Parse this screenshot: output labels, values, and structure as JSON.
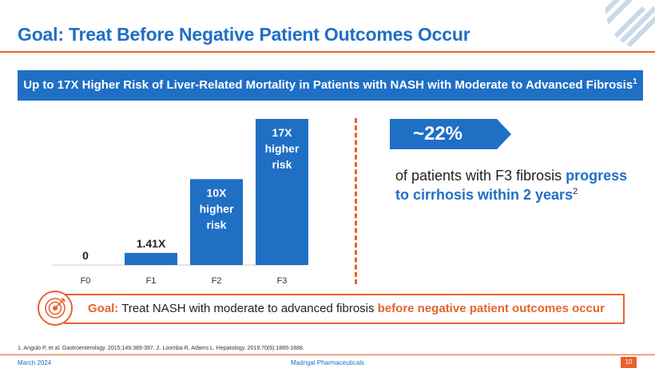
{
  "slide": {
    "title": "Goal: Treat Before Negative Patient Outcomes Occur",
    "banner_text": "Up to 17X Higher Risk of Liver-Related Mortality in Patients with NASH with Moderate to Advanced Fibrosis",
    "banner_footnote": "1",
    "callout_value": "~22%",
    "stat_text_plain": "of patients with F3 fibrosis ",
    "stat_text_highlight": "progress to cirrhosis within 2 years",
    "stat_footnote": "2",
    "goal_label": "Goal:",
    "goal_text_plain": " Treat NASH with moderate to advanced fibrosis ",
    "goal_text_highlight": "before negative patient outcomes occur",
    "references": "1. Angulo P, et al. Gastroenterology. 2015;149:389-397.  2. Loomba R, Adams L. Hepatology. 2019;70(6):1885-1888.",
    "footer_date": "March 2024",
    "footer_company": "Madrigal Pharmaceuticals",
    "page_number": "10"
  },
  "colors": {
    "brand_blue": "#1f6fc5",
    "accent_orange": "#e8622c"
  },
  "chart_data": {
    "type": "bar",
    "title": "",
    "xlabel": "",
    "ylabel": "",
    "categories": [
      "F0",
      "F1",
      "F2",
      "F3"
    ],
    "values": [
      0,
      1.41,
      10,
      17
    ],
    "ylim": [
      0,
      17
    ],
    "grid": false,
    "labels": [
      {
        "text": [
          "0"
        ],
        "position": "above"
      },
      {
        "text": [
          "1.41X"
        ],
        "position": "above"
      },
      {
        "text": [
          "10X",
          "higher",
          "risk"
        ],
        "position": "inside"
      },
      {
        "text": [
          "17X",
          "higher",
          "risk"
        ],
        "position": "inside"
      }
    ],
    "bar_color": "#1f6fc5",
    "label_color_inside": "#ffffff",
    "label_color_above": "#222222"
  },
  "icons": {
    "corner": "diagonal-stripes-icon",
    "goal": "target-icon",
    "callout": "arrow-pentagon-icon"
  }
}
